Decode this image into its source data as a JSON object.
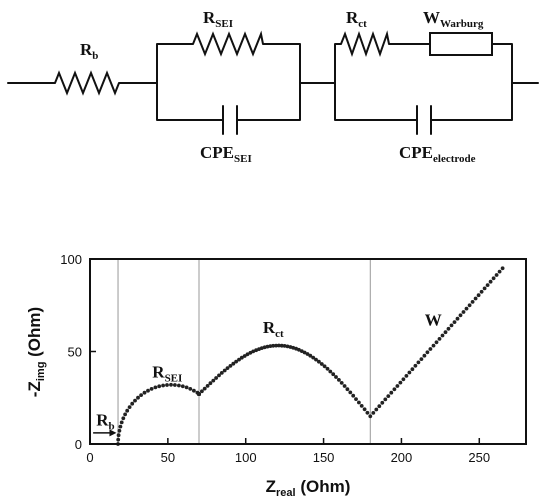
{
  "circuit": {
    "labels": {
      "rb_main": "R",
      "rb_sub": "b",
      "rsei_main": "R",
      "rsei_sub": "SEI",
      "rct_main": "R",
      "rct_sub": "ct",
      "w_main": "W",
      "w_sub": "Warburg",
      "cpesei_main": "CPE",
      "cpesei_sub": "SEI",
      "cpeel_main": "CPE",
      "cpeel_sub": "electrode"
    }
  },
  "chart_data": {
    "type": "scatter",
    "xlabel_main": "Z",
    "xlabel_sub": "real",
    "xlabel_unit": " (Ohm)",
    "ylabel_prefix": "-Z",
    "ylabel_sub": "img",
    "ylabel_unit": " (Ohm)",
    "xlim": [
      0,
      280
    ],
    "ylim": [
      0,
      100
    ],
    "xticks": [
      0,
      50,
      100,
      150,
      200,
      250
    ],
    "yticks": [
      0,
      50,
      100
    ],
    "vertical_markers": [
      18,
      70,
      180
    ],
    "annotations": [
      {
        "main": "R",
        "sub": "b",
        "x": 4,
        "y": 10
      },
      {
        "main": "R",
        "sub": "SEI",
        "x": 40,
        "y": 36
      },
      {
        "main": "R",
        "sub": "ct",
        "x": 111,
        "y": 60
      },
      {
        "main": "W",
        "sub": "",
        "x": 215,
        "y": 64
      }
    ],
    "arrow_rb": {
      "x_from": 2,
      "x_to": 17,
      "y": 6
    },
    "nyquist_model": {
      "rb": 18,
      "sei_arc": {
        "x_start": 18,
        "x_end": 70,
        "center_x": 50,
        "radius": 33,
        "peak_y": 32
      },
      "ct_arc": {
        "x_start": 70,
        "x_end": 180,
        "center_x": 122,
        "radius": 60,
        "peak_y": 53
      },
      "warburg": {
        "x_start": 180,
        "y_start": 15,
        "x_end": 265,
        "y_end": 95
      }
    }
  }
}
